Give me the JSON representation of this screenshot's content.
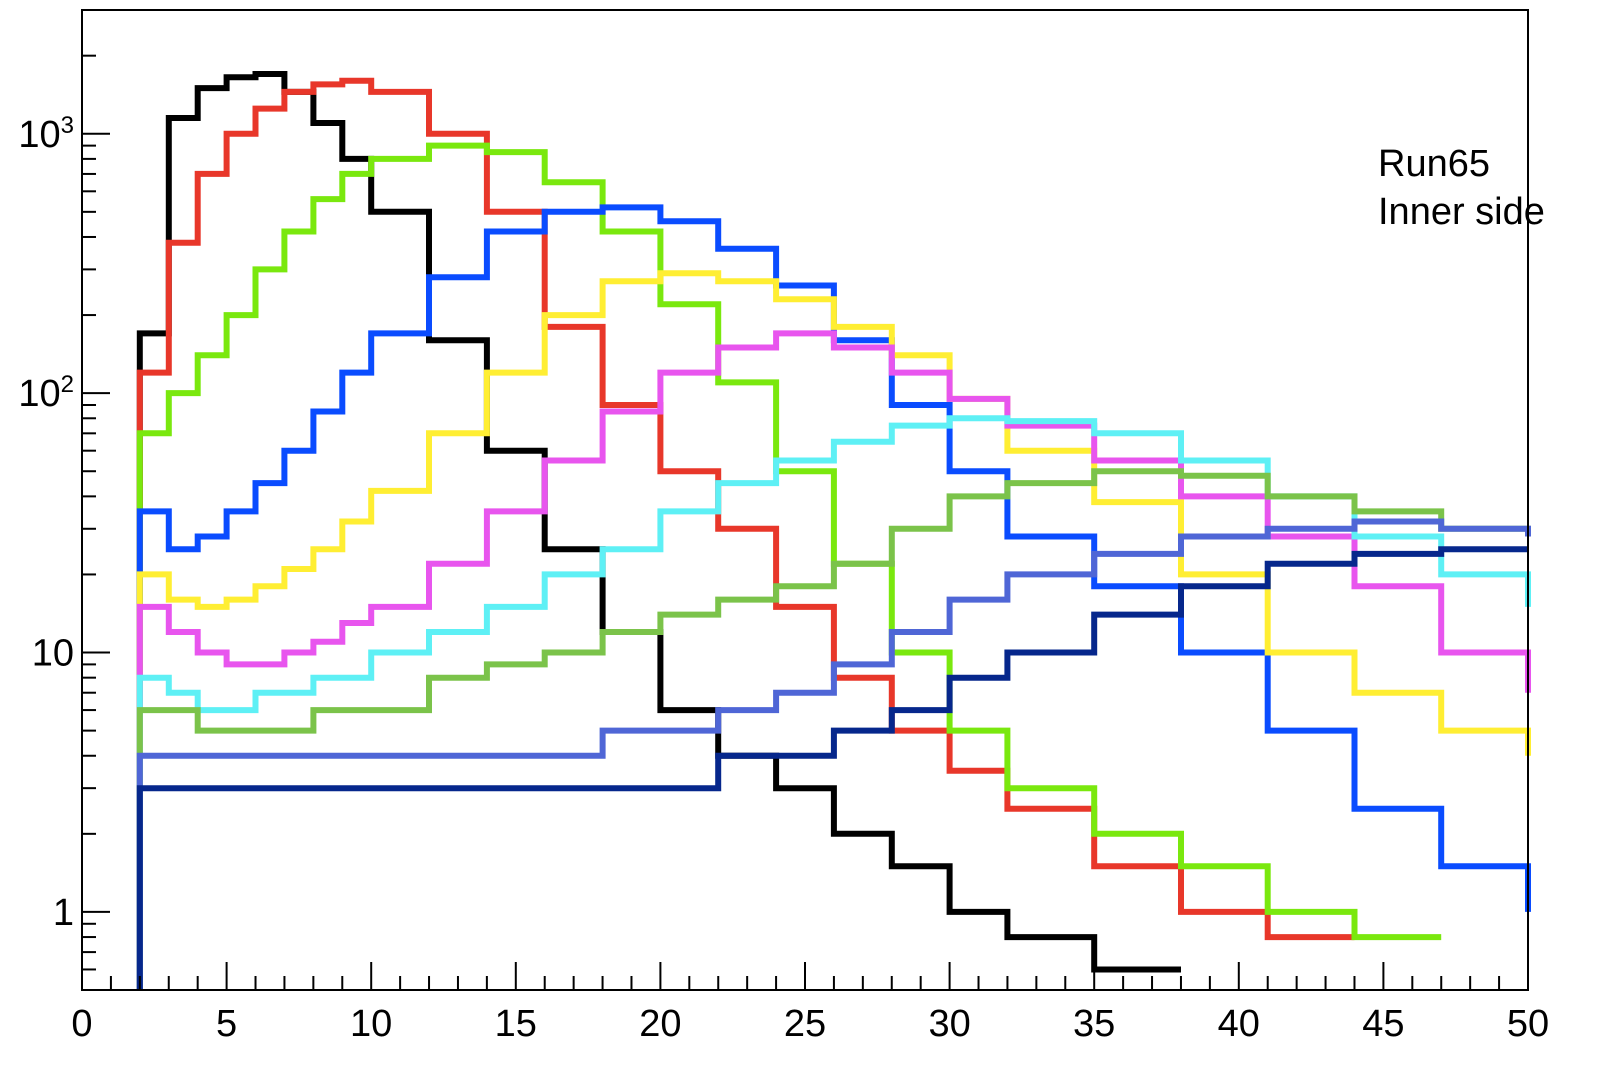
{
  "chart_data": {
    "type": "line",
    "style": "step histogram",
    "title": "",
    "xlabel": "",
    "ylabel": "",
    "xlim": [
      0,
      50
    ],
    "ylim": [
      0.5,
      3000
    ],
    "yscale": "log",
    "grid": false,
    "x_ticks": [
      "0",
      "5",
      "10",
      "15",
      "20",
      "25",
      "30",
      "35",
      "40",
      "45",
      "50"
    ],
    "y_ticks": [
      {
        "value": 1,
        "label": "1"
      },
      {
        "value": 10,
        "label": "10"
      },
      {
        "value": 100,
        "label": "10",
        "exp": "2"
      },
      {
        "value": 1000,
        "label": "10",
        "exp": "3"
      }
    ],
    "annotations": [
      "Run65",
      "Inner side"
    ],
    "x": [
      2,
      3,
      4,
      5,
      6,
      7,
      8,
      9,
      10,
      12,
      14,
      16,
      18,
      20,
      22,
      24,
      26,
      28,
      30,
      32,
      35,
      38,
      41,
      44,
      47,
      50
    ],
    "series": [
      {
        "color": "#000000",
        "values": [
          170,
          1150,
          1500,
          1650,
          1700,
          1450,
          1100,
          800,
          500,
          160,
          60,
          25,
          12,
          6,
          4,
          3,
          2,
          1.5,
          1,
          0.8,
          0.6,
          null,
          null,
          null,
          null,
          null
        ]
      },
      {
        "color": "#e8372a",
        "values": [
          120,
          380,
          700,
          1000,
          1250,
          1450,
          1550,
          1600,
          1450,
          1000,
          500,
          180,
          90,
          50,
          30,
          15,
          8,
          5,
          3.5,
          2.5,
          1.5,
          1,
          0.8,
          null,
          null,
          null
        ]
      },
      {
        "color": "#7ae80e",
        "values": [
          70,
          100,
          140,
          200,
          300,
          420,
          560,
          700,
          800,
          900,
          850,
          650,
          420,
          220,
          110,
          50,
          22,
          10,
          5,
          3,
          2,
          1.5,
          1,
          0.8,
          null,
          null
        ]
      },
      {
        "color": "#0a4cff",
        "values": [
          35,
          25,
          28,
          35,
          45,
          60,
          85,
          120,
          170,
          280,
          420,
          500,
          520,
          460,
          360,
          260,
          160,
          90,
          50,
          28,
          18,
          10,
          5,
          2.5,
          1.5,
          1
        ]
      },
      {
        "color": "#ffee33",
        "values": [
          20,
          16,
          15,
          16,
          18,
          21,
          25,
          32,
          42,
          70,
          120,
          200,
          270,
          290,
          270,
          230,
          180,
          140,
          95,
          60,
          38,
          20,
          10,
          7,
          5,
          4
        ]
      },
      {
        "color": "#e855ee",
        "values": [
          15,
          12,
          10,
          9,
          9,
          10,
          11,
          13,
          15,
          22,
          35,
          55,
          85,
          120,
          150,
          170,
          150,
          120,
          95,
          75,
          55,
          40,
          28,
          18,
          10,
          7
        ]
      },
      {
        "color": "#5ef0f5",
        "values": [
          8,
          7,
          6,
          6,
          7,
          7,
          8,
          8,
          10,
          12,
          15,
          20,
          25,
          35,
          45,
          55,
          65,
          75,
          80,
          78,
          70,
          55,
          40,
          28,
          20,
          15
        ]
      },
      {
        "color": "#7bc34a",
        "values": [
          6,
          6,
          5,
          5,
          5,
          5,
          6,
          6,
          6,
          8,
          9,
          10,
          12,
          14,
          16,
          18,
          22,
          30,
          40,
          45,
          50,
          48,
          40,
          35,
          30,
          28
        ]
      },
      {
        "color": "#4f66d6",
        "values": [
          4,
          4,
          4,
          4,
          4,
          4,
          4,
          4,
          4,
          4,
          4,
          4,
          5,
          5,
          6,
          7,
          9,
          12,
          16,
          20,
          24,
          28,
          30,
          32,
          30,
          28
        ]
      },
      {
        "color": "#06278c",
        "values": [
          3,
          3,
          3,
          3,
          3,
          3,
          3,
          3,
          3,
          3,
          3,
          3,
          3,
          3,
          4,
          4,
          5,
          6,
          8,
          10,
          14,
          18,
          22,
          24,
          25,
          25
        ]
      }
    ]
  }
}
